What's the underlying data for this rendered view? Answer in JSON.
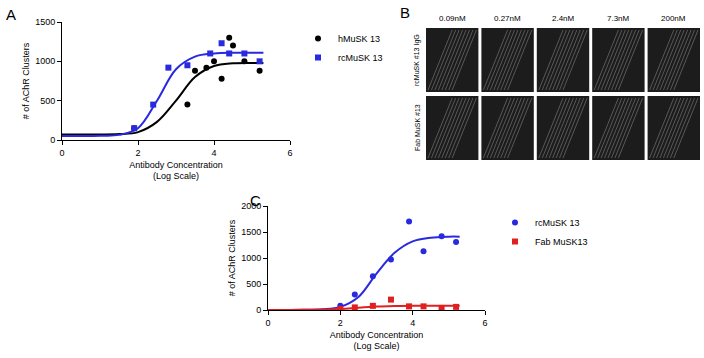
{
  "chart_data": [
    {
      "type": "scatter",
      "title": "A",
      "x_label": "Antibody Concentration\n(Log Scale)",
      "y_label": "# of AChR Clusters",
      "xlim": [
        0,
        6
      ],
      "xticks": [
        0,
        2,
        4,
        6
      ],
      "ylim": [
        0,
        1500
      ],
      "yticks": [
        0,
        500,
        1000,
        1500
      ],
      "grid": false,
      "legend": "right",
      "series": [
        {
          "name": "hMuSK 13",
          "color": "#000000",
          "marker": "circle",
          "x": [
            1.9,
            3.3,
            3.5,
            3.8,
            4.0,
            4.2,
            4.4,
            4.5,
            4.8,
            5.2
          ],
          "values": [
            150,
            450,
            880,
            920,
            1000,
            780,
            1300,
            1200,
            1000,
            880
          ],
          "fit": {
            "x": [
              0,
              1,
              1.5,
              2,
              2.5,
              3,
              3.5,
              4,
              4.5,
              5,
              5.3
            ],
            "values": [
              70,
              70,
              75,
              100,
              230,
              500,
              800,
              940,
              975,
              980,
              980
            ]
          }
        },
        {
          "name": "rcMuSK 13",
          "color": "#2929e0",
          "marker": "square",
          "x": [
            1.9,
            2.4,
            2.8,
            3.3,
            3.9,
            4.2,
            4.4,
            4.8,
            5.2
          ],
          "values": [
            150,
            450,
            920,
            950,
            1100,
            1230,
            1100,
            1100,
            1000
          ],
          "fit": {
            "x": [
              0,
              1,
              1.5,
              2,
              2.5,
              3,
              3.5,
              4,
              4.5,
              5,
              5.3
            ],
            "values": [
              50,
              55,
              65,
              150,
              500,
              900,
              1060,
              1100,
              1110,
              1110,
              1110
            ]
          }
        }
      ]
    },
    {
      "type": "image_grid",
      "title": "B",
      "columns": [
        "0.09nM",
        "0.27nM",
        "2.4nM",
        "7.3nM",
        "200nM"
      ],
      "rows": [
        "rcMuSK #13 IgG",
        "Fab MuSK #13"
      ]
    },
    {
      "type": "scatter",
      "title": "C",
      "x_label": "Antibody Concentration\n(Log Scale)",
      "y_label": "# of AChR Clusters",
      "xlim": [
        0,
        6
      ],
      "xticks": [
        0,
        2,
        4,
        6
      ],
      "ylim": [
        0,
        2000
      ],
      "yticks": [
        0,
        500,
        1000,
        1500,
        2000
      ],
      "grid": false,
      "legend": "right",
      "series": [
        {
          "name": "rcMuSK 13",
          "color": "#2929e0",
          "marker": "circle",
          "x": [
            2.0,
            2.4,
            2.9,
            3.4,
            3.9,
            4.3,
            4.8,
            5.2
          ],
          "values": [
            80,
            300,
            650,
            970,
            1700,
            1130,
            1420,
            1310
          ],
          "fit": {
            "x": [
              0,
              1,
              1.5,
              2,
              2.5,
              3,
              3.5,
              4,
              4.5,
              5,
              5.3
            ],
            "values": [
              0,
              5,
              15,
              60,
              250,
              700,
              1100,
              1320,
              1390,
              1410,
              1410
            ]
          }
        },
        {
          "name": "Fab MuSK13",
          "color": "#e02020",
          "marker": "square",
          "x": [
            2.0,
            2.4,
            2.9,
            3.4,
            3.9,
            4.3,
            4.8,
            5.2
          ],
          "values": [
            20,
            50,
            80,
            200,
            70,
            70,
            40,
            60
          ],
          "fit": {
            "x": [
              0,
              1,
              2,
              2.5,
              3,
              3.5,
              4,
              5,
              5.3
            ],
            "values": [
              0,
              5,
              20,
              45,
              65,
              75,
              80,
              80,
              80
            ]
          }
        }
      ]
    }
  ]
}
